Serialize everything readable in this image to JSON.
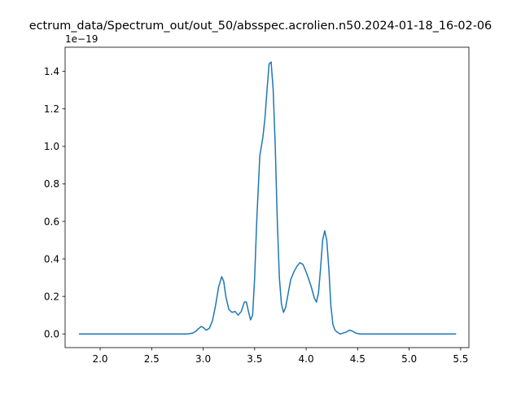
{
  "chart_data": {
    "type": "line",
    "title": "ectrum_data/Spectrum_out/out_50/absspec.acrolien.n50.2024-01-18_16-02-06",
    "xlabel": "",
    "ylabel": "",
    "y_offset_label": "1e−19",
    "xlim": [
      1.66,
      5.58
    ],
    "ylim": [
      -0.0728,
      1.5288
    ],
    "x_ticks": [
      2.0,
      2.5,
      3.0,
      3.5,
      4.0,
      4.5,
      5.0,
      5.5
    ],
    "x_tick_labels": [
      "2.0",
      "2.5",
      "3.0",
      "3.5",
      "4.0",
      "4.5",
      "5.0",
      "5.5"
    ],
    "y_ticks": [
      0.0,
      0.2,
      0.4,
      0.6,
      0.8,
      1.0,
      1.2,
      1.4
    ],
    "y_tick_labels": [
      "0.0",
      "0.2",
      "0.4",
      "0.6",
      "0.8",
      "1.0",
      "1.2",
      "1.4"
    ],
    "grid": false,
    "legend": false,
    "series": [
      {
        "color": "#1f77b4",
        "x": [
          1.8,
          2.5,
          2.85,
          2.9,
          2.93,
          2.96,
          2.98,
          3.0,
          3.03,
          3.06,
          3.09,
          3.12,
          3.15,
          3.18,
          3.2,
          3.22,
          3.25,
          3.28,
          3.31,
          3.34,
          3.37,
          3.4,
          3.42,
          3.44,
          3.46,
          3.48,
          3.5,
          3.52,
          3.55,
          3.58,
          3.6,
          3.62,
          3.64,
          3.66,
          3.68,
          3.7,
          3.72,
          3.74,
          3.76,
          3.78,
          3.8,
          3.82,
          3.85,
          3.88,
          3.91,
          3.94,
          3.97,
          4.0,
          4.02,
          4.05,
          4.08,
          4.1,
          4.12,
          4.14,
          4.16,
          4.18,
          4.2,
          4.22,
          4.24,
          4.26,
          4.28,
          4.3,
          4.33,
          4.36,
          4.39,
          4.42,
          4.45,
          4.48,
          4.52,
          4.6,
          5.0,
          5.45
        ],
        "y": [
          0.0,
          0.0,
          0.0,
          0.005,
          0.015,
          0.03,
          0.04,
          0.035,
          0.02,
          0.03,
          0.07,
          0.15,
          0.25,
          0.305,
          0.28,
          0.2,
          0.13,
          0.115,
          0.12,
          0.1,
          0.12,
          0.17,
          0.17,
          0.12,
          0.075,
          0.1,
          0.3,
          0.6,
          0.95,
          1.05,
          1.15,
          1.3,
          1.44,
          1.45,
          1.3,
          1.0,
          0.6,
          0.3,
          0.16,
          0.115,
          0.14,
          0.2,
          0.29,
          0.33,
          0.36,
          0.38,
          0.37,
          0.33,
          0.3,
          0.25,
          0.19,
          0.17,
          0.22,
          0.35,
          0.5,
          0.55,
          0.5,
          0.35,
          0.15,
          0.05,
          0.02,
          0.01,
          0.0,
          0.005,
          0.01,
          0.02,
          0.015,
          0.005,
          0.0,
          0.0,
          0.0,
          0.0
        ]
      }
    ]
  }
}
